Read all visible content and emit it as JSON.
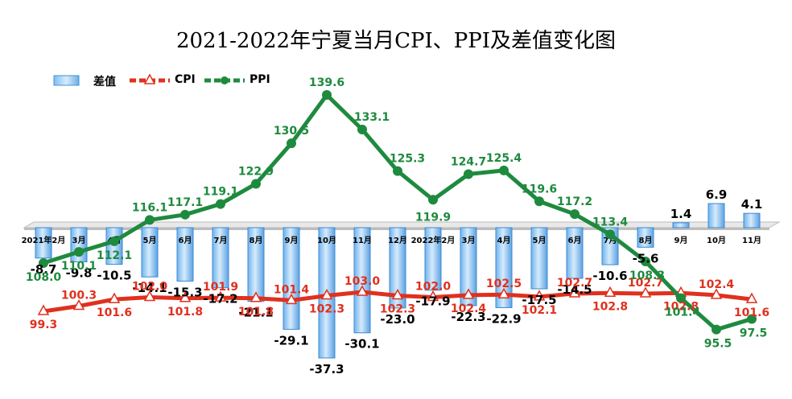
{
  "chart_data": {
    "type": "bar+line",
    "title": "2021-2022年宁夏当月CPI、PPI及差值变化图",
    "categories": [
      "2021年2月",
      "3月",
      "4月",
      "5月",
      "6月",
      "7月",
      "8月",
      "9月",
      "10月",
      "11月",
      "12月",
      "2022年2月",
      "3月",
      "4月",
      "5月",
      "6月",
      "7月",
      "8月",
      "9月",
      "10月",
      "11月"
    ],
    "series": [
      {
        "name": "差值",
        "kind": "bar",
        "color": "#5ba7e6",
        "values": [
          -8.7,
          -9.8,
          -10.5,
          -14.1,
          -15.3,
          -17.2,
          -21.1,
          -29.1,
          -37.3,
          -30.1,
          -23.0,
          -17.9,
          -22.3,
          -22.9,
          -17.5,
          -14.5,
          -10.6,
          -5.6,
          1.4,
          6.9,
          4.1
        ],
        "labels": [
          "-8.7",
          "-9.8",
          "-10.5",
          "-14.1",
          "-15.3",
          "-17.2",
          "-21.1",
          "-29.1",
          "-37.3",
          "-30.1",
          "-23.0",
          "-17.9",
          "-22.3",
          "-22.9",
          "-17.5",
          "-14.5",
          "-10.6",
          "-5.6",
          "1.4",
          "6.9",
          "4.1"
        ]
      },
      {
        "name": "CPI",
        "kind": "line",
        "color": "#e0301e",
        "values": [
          99.3,
          100.3,
          101.6,
          102.0,
          101.8,
          101.9,
          101.8,
          101.4,
          102.3,
          103.0,
          102.3,
          102.0,
          102.4,
          102.5,
          102.1,
          102.7,
          102.8,
          102.7,
          102.8,
          102.4,
          101.6
        ],
        "labels": [
          "99.3",
          "100.3",
          "101.6",
          "102.0",
          "101.8",
          "101.9",
          "101.8",
          "101.4",
          "102.3",
          "103.0",
          "102.3",
          "102.0",
          "102.4",
          "102.5",
          "102.1",
          "102.7",
          "102.8",
          "102.7",
          "102.8",
          "102.4",
          "101.6"
        ]
      },
      {
        "name": "PPI",
        "kind": "line",
        "color": "#1e8a3e",
        "values": [
          108.0,
          110.1,
          112.1,
          116.1,
          117.1,
          119.1,
          122.9,
          130.5,
          139.6,
          133.1,
          125.3,
          119.9,
          124.7,
          125.4,
          119.6,
          117.2,
          113.4,
          108.3,
          101.4,
          95.5,
          97.5
        ],
        "labels": [
          "108.0",
          "110.1",
          "112.1",
          "116.1",
          "117.1",
          "119.1",
          "122.9",
          "130.5",
          "139.6",
          "133.1",
          "125.3",
          "119.9",
          "124.7",
          "125.4",
          "119.6",
          "117.2",
          "113.4",
          "108.3",
          "101.4",
          "95.5",
          "97.5"
        ]
      }
    ],
    "legend": [
      "差值",
      "CPI",
      "PPI"
    ],
    "legend_position": "top-left",
    "grid": false
  }
}
